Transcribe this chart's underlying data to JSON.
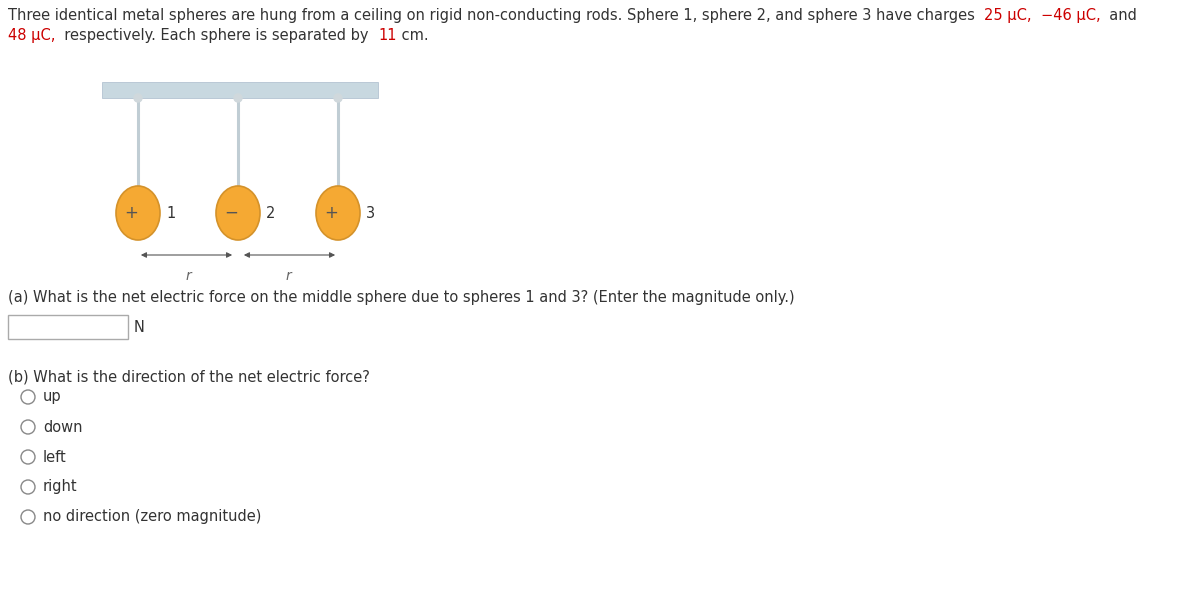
{
  "bg_color": "#ffffff",
  "normal_color": "#333333",
  "highlight_color": "#cc0000",
  "ceiling_color_face": "#c8d8e0",
  "ceiling_color_edge": "#aabbcc",
  "rod_color": "#c0cdd4",
  "attachment_color": "#d0d8dc",
  "sphere_face": "#f5a933",
  "sphere_edge": "#d4922a",
  "sphere_signs": [
    "+",
    "−",
    "+"
  ],
  "sphere_labels": [
    "1",
    "2",
    "3"
  ],
  "sign_color": "#555555",
  "arrow_color": "#555555",
  "radio_edge": "#888888",
  "box_edge": "#aaaaaa",
  "fontsize_title": 10.5,
  "fontsize_body": 10.5,
  "fontsize_radio": 10.5,
  "question_a": "(a) What is the net electric force on the middle sphere due to spheres 1 and 3? (Enter the magnitude only.)",
  "answer_unit": "N",
  "question_b": "(b) What is the direction of the net electric force?",
  "choices": [
    "up",
    "down",
    "left",
    "right",
    "no direction (zero magnitude)"
  ]
}
